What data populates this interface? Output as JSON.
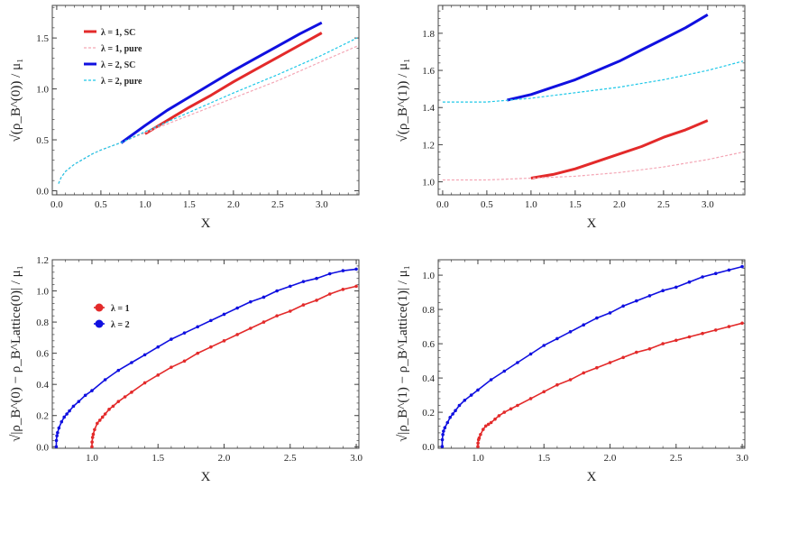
{
  "colors": {
    "red": "#e32a2a",
    "blue": "#1010e0",
    "pink": "#f4a6b5",
    "cyan": "#1ec8e8",
    "frame": "#444444"
  },
  "caption": "",
  "chart_data": [
    {
      "type": "line",
      "xlabel": "X",
      "ylabel": "√(ρ_B^(0)) / μ₁",
      "xlim": [
        -0.05,
        3.42
      ],
      "ylim": [
        -0.04,
        1.82
      ],
      "xticks": [
        0.0,
        0.5,
        1.0,
        1.5,
        2.0,
        2.5,
        3.0
      ],
      "yticks": [
        0.0,
        0.5,
        1.0,
        1.5
      ],
      "grid": false,
      "legend_position": "top-left",
      "series": [
        {
          "name": "λ = 1, SC",
          "color": "red",
          "style": "solid",
          "x": [
            1.0,
            1.25,
            1.5,
            1.75,
            2.0,
            2.25,
            2.5,
            2.75,
            3.0
          ],
          "y": [
            0.56,
            0.69,
            0.82,
            0.94,
            1.07,
            1.19,
            1.31,
            1.43,
            1.55
          ]
        },
        {
          "name": "λ = 1, pure",
          "color": "pink",
          "style": "dashed",
          "x": [
            0.02,
            0.05,
            0.1,
            0.2,
            0.3,
            0.4,
            0.5,
            0.75,
            1.0,
            1.5,
            2.0,
            2.5,
            3.0,
            3.4
          ],
          "y": [
            0.07,
            0.13,
            0.19,
            0.26,
            0.31,
            0.36,
            0.4,
            0.48,
            0.57,
            0.74,
            0.91,
            1.08,
            1.27,
            1.42
          ]
        },
        {
          "name": "λ = 2, SC",
          "color": "blue",
          "style": "solid",
          "x": [
            0.73,
            1.0,
            1.25,
            1.5,
            1.75,
            2.0,
            2.25,
            2.5,
            2.75,
            3.0
          ],
          "y": [
            0.47,
            0.64,
            0.79,
            0.92,
            1.05,
            1.18,
            1.3,
            1.42,
            1.54,
            1.65
          ]
        },
        {
          "name": "λ = 2, pure",
          "color": "cyan",
          "style": "dashed",
          "x": [
            0.02,
            0.05,
            0.1,
            0.2,
            0.3,
            0.4,
            0.5,
            0.75,
            1.0,
            1.5,
            2.0,
            2.5,
            3.0,
            3.4
          ],
          "y": [
            0.07,
            0.13,
            0.19,
            0.26,
            0.31,
            0.36,
            0.4,
            0.48,
            0.58,
            0.77,
            0.96,
            1.14,
            1.33,
            1.5
          ]
        }
      ]
    },
    {
      "type": "line",
      "xlabel": "X",
      "ylabel": "√(ρ_B^(1)) / μ₁",
      "xlim": [
        -0.05,
        3.42
      ],
      "ylim": [
        0.93,
        1.95
      ],
      "xticks": [
        0.0,
        0.5,
        1.0,
        1.5,
        2.0,
        2.5,
        3.0
      ],
      "yticks": [
        1.0,
        1.2,
        1.4,
        1.6,
        1.8
      ],
      "grid": false,
      "series": [
        {
          "color": "red",
          "style": "solid",
          "x": [
            1.0,
            1.25,
            1.5,
            1.75,
            2.0,
            2.25,
            2.5,
            2.75,
            3.0
          ],
          "y": [
            1.02,
            1.04,
            1.07,
            1.11,
            1.15,
            1.19,
            1.24,
            1.28,
            1.33
          ]
        },
        {
          "color": "pink",
          "style": "dashed",
          "x": [
            0.0,
            0.5,
            1.0,
            1.5,
            2.0,
            2.5,
            3.0,
            3.4
          ],
          "y": [
            1.01,
            1.01,
            1.02,
            1.03,
            1.05,
            1.08,
            1.12,
            1.16
          ]
        },
        {
          "color": "blue",
          "style": "solid",
          "x": [
            0.73,
            1.0,
            1.25,
            1.5,
            1.75,
            2.0,
            2.25,
            2.5,
            2.75,
            3.0
          ],
          "y": [
            1.44,
            1.47,
            1.51,
            1.55,
            1.6,
            1.65,
            1.71,
            1.77,
            1.83,
            1.9
          ]
        },
        {
          "color": "cyan",
          "style": "dashed",
          "x": [
            0.0,
            0.5,
            1.0,
            1.5,
            2.0,
            2.5,
            3.0,
            3.4
          ],
          "y": [
            1.43,
            1.43,
            1.45,
            1.48,
            1.51,
            1.55,
            1.6,
            1.65
          ]
        }
      ]
    },
    {
      "type": "line",
      "xlabel": "X",
      "ylabel": "√|ρ_B^(0) − ρ_B^Lattice(0)| / μ₁",
      "xlim": [
        0.7,
        3.02
      ],
      "ylim": [
        -0.01,
        1.2
      ],
      "xticks": [
        1.0,
        1.5,
        2.0,
        2.5,
        3.0
      ],
      "yticks": [
        0.0,
        0.2,
        0.4,
        0.6,
        0.8,
        1.0,
        1.2
      ],
      "grid": false,
      "legend_position": "top-left",
      "markers": true,
      "series": [
        {
          "name": "λ = 1",
          "color": "red",
          "x": [
            1.0,
            1.001,
            1.005,
            1.01,
            1.02,
            1.04,
            1.06,
            1.08,
            1.1,
            1.13,
            1.16,
            1.2,
            1.25,
            1.3,
            1.4,
            1.5,
            1.6,
            1.7,
            1.8,
            1.9,
            2.0,
            2.1,
            2.2,
            2.3,
            2.4,
            2.5,
            2.6,
            2.7,
            2.8,
            2.9,
            3.0
          ],
          "y": [
            0.0,
            0.03,
            0.06,
            0.08,
            0.11,
            0.15,
            0.17,
            0.19,
            0.21,
            0.24,
            0.26,
            0.29,
            0.32,
            0.35,
            0.41,
            0.46,
            0.51,
            0.55,
            0.6,
            0.64,
            0.68,
            0.72,
            0.76,
            0.8,
            0.84,
            0.87,
            0.91,
            0.94,
            0.98,
            1.01,
            1.03
          ]
        },
        {
          "name": "λ = 2",
          "color": "blue",
          "x": [
            0.73,
            0.731,
            0.735,
            0.74,
            0.75,
            0.77,
            0.79,
            0.81,
            0.83,
            0.86,
            0.9,
            0.95,
            1.0,
            1.1,
            1.2,
            1.3,
            1.4,
            1.5,
            1.6,
            1.7,
            1.8,
            1.9,
            2.0,
            2.1,
            2.2,
            2.3,
            2.4,
            2.5,
            2.6,
            2.7,
            2.8,
            2.9,
            3.0
          ],
          "y": [
            0.0,
            0.04,
            0.07,
            0.09,
            0.12,
            0.16,
            0.19,
            0.21,
            0.23,
            0.26,
            0.29,
            0.33,
            0.36,
            0.43,
            0.49,
            0.54,
            0.59,
            0.64,
            0.69,
            0.73,
            0.77,
            0.81,
            0.85,
            0.89,
            0.93,
            0.96,
            1.0,
            1.03,
            1.06,
            1.08,
            1.11,
            1.13,
            1.14
          ]
        }
      ]
    },
    {
      "type": "line",
      "xlabel": "X",
      "ylabel": "√|ρ_B^(1) − ρ_B^Lattice(1)| / μ₁",
      "xlim": [
        0.7,
        3.02
      ],
      "ylim": [
        -0.01,
        1.09
      ],
      "xticks": [
        1.0,
        1.5,
        2.0,
        2.5,
        3.0
      ],
      "yticks": [
        0.0,
        0.2,
        0.4,
        0.6,
        0.8,
        1.0
      ],
      "grid": false,
      "markers": true,
      "series": [
        {
          "color": "red",
          "x": [
            1.0,
            1.001,
            1.005,
            1.01,
            1.02,
            1.04,
            1.06,
            1.08,
            1.1,
            1.13,
            1.16,
            1.2,
            1.25,
            1.3,
            1.4,
            1.5,
            1.6,
            1.7,
            1.8,
            1.9,
            2.0,
            2.1,
            2.2,
            2.3,
            2.4,
            2.5,
            2.6,
            2.7,
            2.8,
            2.9,
            3.0
          ],
          "y": [
            0.0,
            0.02,
            0.04,
            0.05,
            0.07,
            0.1,
            0.12,
            0.13,
            0.14,
            0.16,
            0.18,
            0.2,
            0.22,
            0.24,
            0.28,
            0.32,
            0.36,
            0.39,
            0.43,
            0.46,
            0.49,
            0.52,
            0.55,
            0.57,
            0.6,
            0.62,
            0.64,
            0.66,
            0.68,
            0.7,
            0.72
          ]
        },
        {
          "color": "blue",
          "x": [
            0.73,
            0.731,
            0.735,
            0.74,
            0.75,
            0.77,
            0.79,
            0.81,
            0.83,
            0.86,
            0.9,
            0.95,
            1.0,
            1.1,
            1.2,
            1.3,
            1.4,
            1.5,
            1.6,
            1.7,
            1.8,
            1.9,
            2.0,
            2.1,
            2.2,
            2.3,
            2.4,
            2.5,
            2.6,
            2.7,
            2.8,
            2.9,
            3.0
          ],
          "y": [
            0.0,
            0.04,
            0.07,
            0.09,
            0.11,
            0.14,
            0.17,
            0.19,
            0.21,
            0.24,
            0.27,
            0.3,
            0.33,
            0.39,
            0.44,
            0.49,
            0.54,
            0.59,
            0.63,
            0.67,
            0.71,
            0.75,
            0.78,
            0.82,
            0.85,
            0.88,
            0.91,
            0.93,
            0.96,
            0.99,
            1.01,
            1.03,
            1.05
          ]
        }
      ]
    }
  ]
}
